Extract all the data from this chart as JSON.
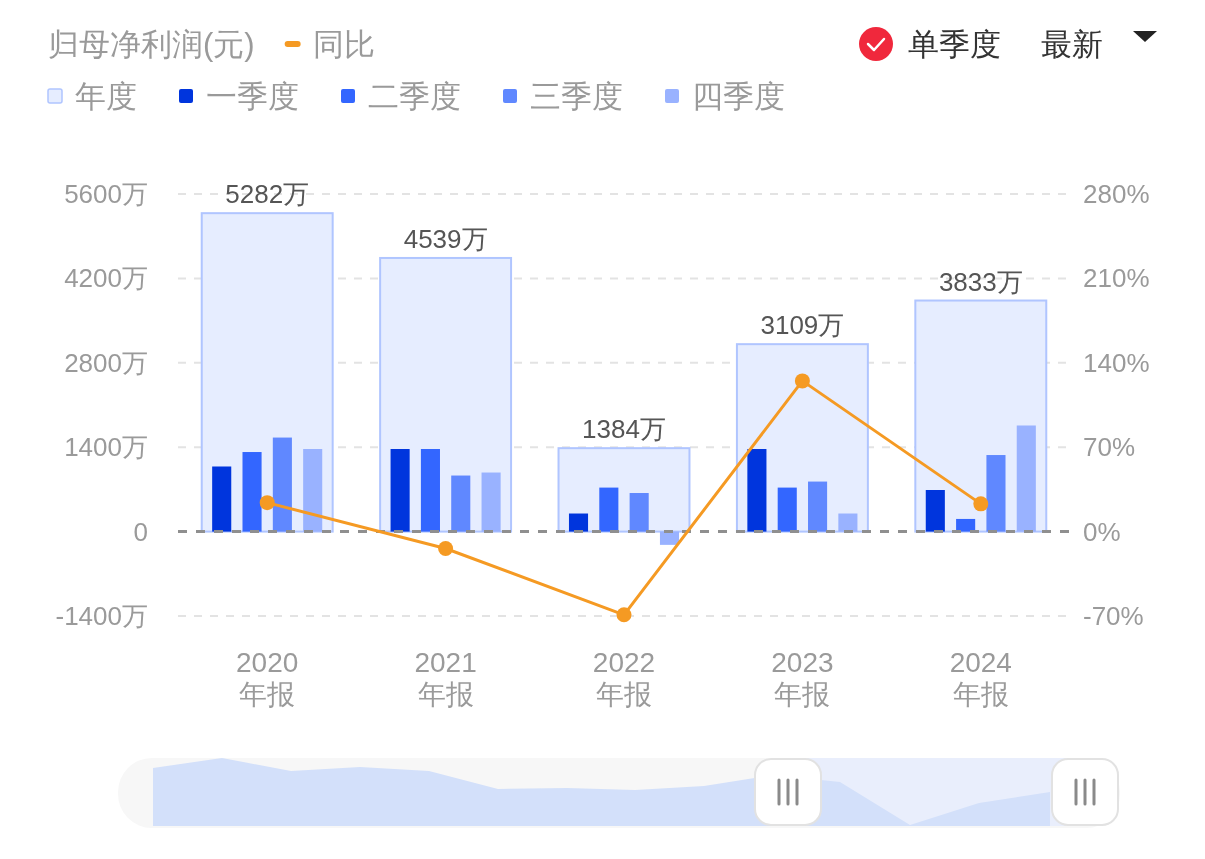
{
  "chart_data": {
    "type": "bar",
    "ylabel": "归母净利润(元)",
    "categories": [
      "2020\n年报",
      "2021\n年报",
      "2022\n年报",
      "2023\n年报",
      "2024\n年报"
    ],
    "series": [
      {
        "name": "年度",
        "color": "#e6edff",
        "values": [
          5282,
          4539,
          1384,
          3109,
          3833
        ],
        "value_labels": [
          "5282万",
          "4539万",
          "1384万",
          "3109万",
          "3833万"
        ]
      },
      {
        "name": "一季度",
        "color": "#0035dd",
        "values": [
          1080,
          1370,
          300,
          1370,
          690
        ]
      },
      {
        "name": "二季度",
        "color": "#3366ff",
        "values": [
          1320,
          1370,
          730,
          730,
          210
        ]
      },
      {
        "name": "三季度",
        "color": "#6088ff",
        "values": [
          1560,
          930,
          640,
          830,
          1270
        ]
      },
      {
        "name": "四季度",
        "color": "#99b2ff",
        "values": [
          1370,
          980,
          -220,
          300,
          1760
        ]
      },
      {
        "name": "同比",
        "type": "line",
        "axis": "y2",
        "color": "#f59a23",
        "values": [
          24,
          -14,
          -69,
          125,
          23
        ]
      }
    ],
    "ylim": [
      -1400,
      5600
    ],
    "yticks": [
      {
        "value": -1400,
        "label": "-1400万"
      },
      0,
      {
        "value": 1400,
        "label": "1400万"
      },
      {
        "value": 2800,
        "label": "2800万"
      },
      {
        "value": 4200,
        "label": "4200万"
      },
      {
        "value": 5600,
        "label": "5600万"
      }
    ],
    "y2lim": [
      -70,
      280
    ],
    "y2ticks": [
      {
        "value": -70,
        "label": "-70%"
      },
      {
        "value": 0,
        "label": "0%"
      },
      {
        "value": 70,
        "label": "70%"
      },
      {
        "value": 140,
        "label": "140%"
      },
      {
        "value": 210,
        "label": "210%"
      },
      {
        "value": 280,
        "label": "280%"
      }
    ],
    "ref_lines": [
      {
        "axis": "y",
        "value": 0,
        "color": "#8f8f8f",
        "line_style": "dashed"
      }
    ],
    "grid": "y",
    "legend": "top left",
    "marker": "circle",
    "line_style": "solid",
    "annotations": [
      "单季度",
      "最新"
    ]
  }
}
